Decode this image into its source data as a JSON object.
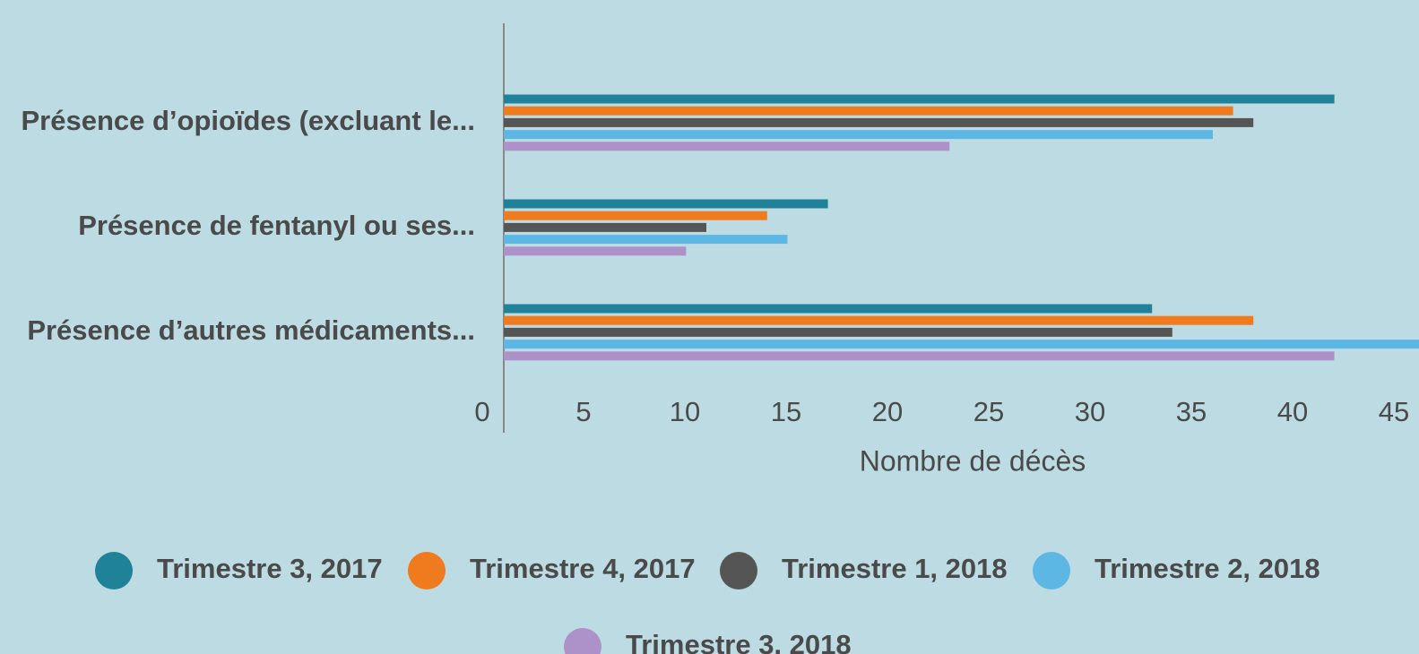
{
  "chart_data": {
    "type": "barh",
    "xlabel": "Nombre de décès",
    "categories": [
      "Présence d’opioïdes (excluant le...",
      "Présence de fentanyl ou ses...",
      "Présence d’autres médicaments..."
    ],
    "series": [
      {
        "name": "Trimestre 3, 2017",
        "color": "#1f8299",
        "values": [
          41,
          16,
          32
        ]
      },
      {
        "name": "Trimestre 4, 2017",
        "color": "#f07a1e",
        "values": [
          36,
          13,
          37
        ]
      },
      {
        "name": "Trimestre 1, 2018",
        "color": "#555555",
        "values": [
          37,
          10,
          33
        ]
      },
      {
        "name": "Trimestre 2, 2018",
        "color": "#5db7e5",
        "values": [
          35,
          14,
          46
        ]
      },
      {
        "name": "Trimestre 3, 2018",
        "color": "#ac92c9",
        "values": [
          22,
          9,
          41
        ]
      }
    ],
    "xlim": [
      0,
      45
    ],
    "xticks": [
      0,
      5,
      10,
      15,
      20,
      25,
      30,
      35,
      40,
      45
    ],
    "grid": false,
    "legend": "bottom"
  }
}
